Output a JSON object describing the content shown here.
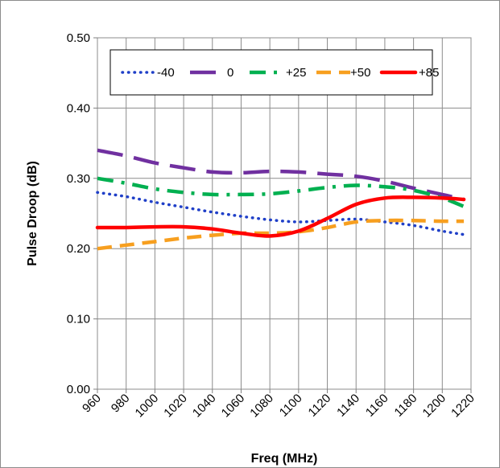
{
  "chart_data": {
    "type": "line",
    "title": "",
    "xlabel": "Freq (MHz)",
    "ylabel": "Pulse Droop (dB)",
    "xlim": [
      960,
      1220
    ],
    "ylim": [
      0.0,
      0.5
    ],
    "x_ticks": [
      "960",
      "980",
      "1000",
      "1020",
      "1040",
      "1060",
      "1080",
      "1100",
      "1120",
      "1140",
      "1160",
      "1180",
      "1200",
      "1220"
    ],
    "y_ticks": [
      "0.00",
      "0.10",
      "0.20",
      "0.30",
      "0.40",
      "0.50"
    ],
    "grid": true,
    "legend_position": "top",
    "series": [
      {
        "name": "-40",
        "color": "#1f3fc8",
        "style": "dotted",
        "points": [
          [
            960,
            0.28
          ],
          [
            980,
            0.274
          ],
          [
            1000,
            0.266
          ],
          [
            1020,
            0.259
          ],
          [
            1040,
            0.252
          ],
          [
            1060,
            0.246
          ],
          [
            1080,
            0.241
          ],
          [
            1100,
            0.238
          ],
          [
            1120,
            0.24
          ],
          [
            1140,
            0.242
          ],
          [
            1160,
            0.238
          ],
          [
            1180,
            0.233
          ],
          [
            1200,
            0.225
          ],
          [
            1215,
            0.22
          ]
        ]
      },
      {
        "name": "0",
        "color": "#7030a0",
        "style": "long-dash",
        "points": [
          [
            960,
            0.34
          ],
          [
            980,
            0.332
          ],
          [
            1000,
            0.322
          ],
          [
            1020,
            0.315
          ],
          [
            1040,
            0.309
          ],
          [
            1060,
            0.308
          ],
          [
            1080,
            0.31
          ],
          [
            1100,
            0.309
          ],
          [
            1120,
            0.306
          ],
          [
            1140,
            0.303
          ],
          [
            1160,
            0.296
          ],
          [
            1180,
            0.286
          ],
          [
            1200,
            0.277
          ],
          [
            1215,
            0.27
          ]
        ]
      },
      {
        "name": "+25",
        "color": "#00b050",
        "style": "dash-dot",
        "points": [
          [
            960,
            0.3
          ],
          [
            980,
            0.293
          ],
          [
            1000,
            0.285
          ],
          [
            1020,
            0.28
          ],
          [
            1040,
            0.277
          ],
          [
            1060,
            0.277
          ],
          [
            1080,
            0.278
          ],
          [
            1100,
            0.282
          ],
          [
            1120,
            0.287
          ],
          [
            1140,
            0.29
          ],
          [
            1160,
            0.288
          ],
          [
            1180,
            0.283
          ],
          [
            1200,
            0.272
          ],
          [
            1215,
            0.26
          ]
        ]
      },
      {
        "name": "+50",
        "color": "#f79f1f",
        "style": "dashed",
        "points": [
          [
            960,
            0.2
          ],
          [
            980,
            0.205
          ],
          [
            1000,
            0.21
          ],
          [
            1020,
            0.215
          ],
          [
            1040,
            0.219
          ],
          [
            1060,
            0.222
          ],
          [
            1080,
            0.222
          ],
          [
            1100,
            0.224
          ],
          [
            1120,
            0.23
          ],
          [
            1140,
            0.238
          ],
          [
            1160,
            0.24
          ],
          [
            1180,
            0.24
          ],
          [
            1200,
            0.239
          ],
          [
            1215,
            0.239
          ]
        ]
      },
      {
        "name": "+85",
        "color": "#ff0000",
        "style": "solid",
        "points": [
          [
            960,
            0.23
          ],
          [
            980,
            0.23
          ],
          [
            1000,
            0.231
          ],
          [
            1020,
            0.231
          ],
          [
            1040,
            0.228
          ],
          [
            1060,
            0.222
          ],
          [
            1080,
            0.218
          ],
          [
            1100,
            0.225
          ],
          [
            1120,
            0.243
          ],
          [
            1140,
            0.263
          ],
          [
            1160,
            0.272
          ],
          [
            1180,
            0.273
          ],
          [
            1200,
            0.272
          ],
          [
            1215,
            0.27
          ]
        ]
      }
    ]
  }
}
